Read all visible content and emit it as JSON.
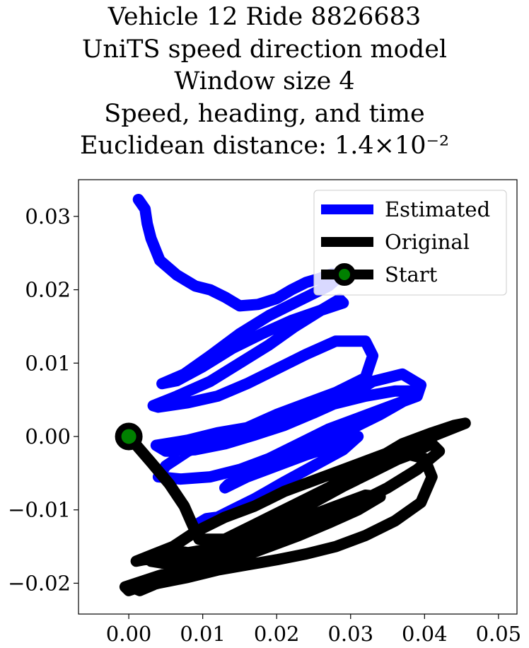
{
  "chart_data": {
    "type": "line",
    "title_lines": [
      "Vehicle 12 Ride 8826683",
      "UniTS speed direction model",
      "Window size 4",
      "Speed, heading, and time",
      "Euclidean distance: 1.4×10⁻²"
    ],
    "xlim": [
      -0.0068,
      0.0525
    ],
    "ylim": [
      -0.0242,
      0.035
    ],
    "xticks": [
      0.0,
      0.01,
      0.02,
      0.03,
      0.04,
      0.05
    ],
    "xtick_labels": [
      "0.00",
      "0.01",
      "0.02",
      "0.03",
      "0.04",
      "0.05"
    ],
    "yticks": [
      -0.02,
      -0.01,
      0.0,
      0.01,
      0.02,
      0.03
    ],
    "ytick_labels": [
      "−0.02",
      "−0.01",
      "0.00",
      "0.01",
      "0.02",
      "0.03"
    ],
    "legend": {
      "placement": "top-right",
      "entries": [
        "Estimated",
        "Original",
        "Start"
      ]
    },
    "series": [
      {
        "name": "Estimated",
        "color": "#0000ff",
        "x": [
          0.0013,
          0.0022,
          0.0025,
          0.003,
          0.0042,
          0.0065,
          0.009,
          0.011,
          0.013,
          0.015,
          0.0175,
          0.02,
          0.022,
          0.024,
          0.026,
          0.0275,
          0.0285,
          0.027,
          0.025,
          0.022,
          0.019,
          0.015,
          0.011,
          0.0075,
          0.0045,
          0.0065,
          0.01,
          0.014,
          0.018,
          0.022,
          0.026,
          0.029,
          0.0285,
          0.026,
          0.0225,
          0.019,
          0.015,
          0.011,
          0.0065,
          0.0033,
          0.004,
          0.008,
          0.012,
          0.016,
          0.02,
          0.024,
          0.028,
          0.032,
          0.033,
          0.032,
          0.028,
          0.024,
          0.02,
          0.016,
          0.012,
          0.008,
          0.0037,
          0.005,
          0.009,
          0.013,
          0.017,
          0.021,
          0.025,
          0.029,
          0.033,
          0.037,
          0.0395,
          0.039,
          0.035,
          0.031,
          0.027,
          0.023,
          0.019,
          0.015,
          0.011,
          0.007,
          0.004,
          0.005,
          0.008,
          0.012,
          0.016,
          0.02,
          0.024,
          0.028,
          0.032,
          0.036,
          0.038,
          0.0375,
          0.034,
          0.03,
          0.026,
          0.022,
          0.019,
          0.016,
          0.0135,
          0.013,
          0.016,
          0.02,
          0.024,
          0.028,
          0.031,
          0.029,
          0.025,
          0.021,
          0.017,
          0.014,
          0.012,
          0.0105,
          0.0095,
          0.009
        ],
        "y": [
          0.0323,
          0.031,
          0.029,
          0.027,
          0.024,
          0.022,
          0.0205,
          0.02,
          0.019,
          0.0178,
          0.018,
          0.0188,
          0.02,
          0.021,
          0.0216,
          0.0222,
          0.0218,
          0.0205,
          0.0195,
          0.018,
          0.0165,
          0.014,
          0.011,
          0.0085,
          0.0072,
          0.0076,
          0.0095,
          0.012,
          0.014,
          0.0158,
          0.0172,
          0.0182,
          0.0187,
          0.0172,
          0.015,
          0.0125,
          0.01,
          0.0075,
          0.0055,
          0.0042,
          0.004,
          0.0046,
          0.0055,
          0.0072,
          0.0092,
          0.0112,
          0.013,
          0.013,
          0.011,
          0.008,
          0.006,
          0.0045,
          0.003,
          0.0012,
          0.0005,
          -0.0005,
          -0.0012,
          -0.002,
          -0.0018,
          -0.001,
          0.0002,
          0.0015,
          0.0032,
          0.005,
          0.0075,
          0.0085,
          0.007,
          0.0055,
          0.004,
          0.0025,
          0.001,
          -0.001,
          -0.003,
          -0.0045,
          -0.0055,
          -0.0058,
          -0.0055,
          -0.004,
          -0.002,
          -0.0005,
          0.001,
          0.0025,
          0.0035,
          0.0045,
          0.0055,
          0.0062,
          0.0062,
          0.005,
          0.003,
          0.001,
          -0.0005,
          -0.002,
          -0.004,
          -0.0055,
          -0.0065,
          -0.007,
          -0.0055,
          -0.004,
          -0.0025,
          -0.0012,
          0.0,
          -0.0018,
          -0.004,
          -0.0062,
          -0.0085,
          -0.01,
          -0.011,
          -0.0112,
          -0.0118,
          -0.013
        ]
      },
      {
        "name": "Original",
        "color": "#000000",
        "x": [
          0.0,
          0.003,
          0.0055,
          0.0075,
          0.0085,
          0.0095,
          0.013,
          0.017,
          0.022,
          0.027,
          0.032,
          0.037,
          0.041,
          0.044,
          0.0455,
          0.044,
          0.041,
          0.037,
          0.033,
          0.029,
          0.025,
          0.021,
          0.017,
          0.013,
          0.009,
          0.006,
          0.003,
          0.001,
          0.002,
          0.006,
          0.01,
          0.014,
          0.018,
          0.022,
          0.026,
          0.03,
          0.034,
          0.038,
          0.04,
          0.041,
          0.0395,
          0.036,
          0.032,
          0.028,
          0.024,
          0.02,
          0.016,
          0.012,
          0.008,
          0.004,
          0.001,
          0.0015,
          0.005,
          0.009,
          0.013,
          0.017,
          0.021,
          0.025,
          0.029,
          0.033,
          0.037,
          0.041,
          0.042,
          0.039,
          0.035,
          0.031,
          0.027,
          0.023,
          0.019,
          0.015,
          0.011,
          0.0075,
          0.004,
          -0.0005,
          0.0,
          0.003,
          0.007,
          0.011,
          0.015,
          0.019,
          0.023,
          0.027,
          0.031,
          0.034,
          0.032,
          0.028,
          0.024,
          0.02,
          0.016,
          0.013,
          0.0115,
          0.009,
          0.006,
          0.0035,
          0.003,
          0.006,
          0.01,
          0.012
        ],
        "y": [
          0.0,
          -0.0035,
          -0.0065,
          -0.0095,
          -0.0118,
          -0.014,
          -0.014,
          -0.012,
          -0.0095,
          -0.007,
          -0.004,
          -0.001,
          0.0005,
          0.0015,
          0.0018,
          0.0012,
          0.0,
          -0.0015,
          -0.003,
          -0.0045,
          -0.006,
          -0.0075,
          -0.0095,
          -0.011,
          -0.013,
          -0.015,
          -0.0162,
          -0.017,
          -0.0168,
          -0.0162,
          -0.0155,
          -0.014,
          -0.012,
          -0.01,
          -0.0078,
          -0.0058,
          -0.004,
          -0.0025,
          -0.003,
          -0.0055,
          -0.009,
          -0.0115,
          -0.0135,
          -0.015,
          -0.016,
          -0.0168,
          -0.0175,
          -0.0182,
          -0.0192,
          -0.02,
          -0.0208,
          -0.021,
          -0.0195,
          -0.0175,
          -0.0155,
          -0.0135,
          -0.0112,
          -0.009,
          -0.0068,
          -0.0048,
          -0.0028,
          -0.001,
          -0.002,
          -0.0045,
          -0.007,
          -0.009,
          -0.011,
          -0.0128,
          -0.0145,
          -0.0158,
          -0.017,
          -0.018,
          -0.019,
          -0.0205,
          -0.021,
          -0.02,
          -0.019,
          -0.0178,
          -0.0165,
          -0.015,
          -0.0135,
          -0.0118,
          -0.01,
          -0.0082,
          -0.008,
          -0.0095,
          -0.011,
          -0.0125,
          -0.014,
          -0.0155,
          -0.0165,
          -0.016,
          -0.0155,
          -0.016,
          -0.017,
          -0.0175,
          -0.017,
          -0.0165
        ]
      }
    ],
    "start_marker": {
      "name": "Start",
      "x": 0.0,
      "y": 0.0,
      "edge_color": "#000000",
      "face_color": "#008000"
    }
  }
}
